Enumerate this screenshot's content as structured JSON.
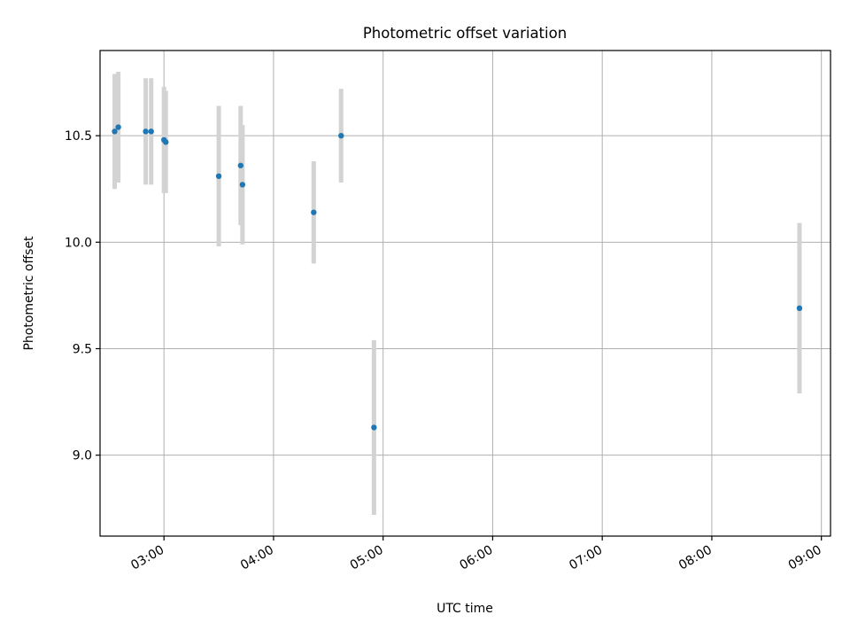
{
  "chart_data": {
    "type": "scatter",
    "title": "Photometric offset variation",
    "xlabel": "UTC time",
    "ylabel": "Photometric offset",
    "xlim": [
      "02:25",
      "09:05"
    ],
    "ylim": [
      8.62,
      10.9
    ],
    "x_ticks": [
      "03:00",
      "04:00",
      "05:00",
      "06:00",
      "07:00",
      "08:00",
      "09:00"
    ],
    "y_ticks": [
      9.0,
      9.5,
      10.0,
      10.5
    ],
    "y_tick_labels": [
      "9.0",
      "9.5",
      "10.0",
      "10.5"
    ],
    "grid": true,
    "colors": {
      "marker": "#1f77b4",
      "errorbar": "#d3d3d3",
      "grid": "#b0b0b0"
    },
    "points": [
      {
        "x": "02:33",
        "y": 10.52,
        "err": 0.27
      },
      {
        "x": "02:35",
        "y": 10.54,
        "err": 0.26
      },
      {
        "x": "02:50",
        "y": 10.52,
        "err": 0.25
      },
      {
        "x": "02:53",
        "y": 10.52,
        "err": 0.25
      },
      {
        "x": "03:00",
        "y": 10.48,
        "err": 0.25
      },
      {
        "x": "03:01",
        "y": 10.47,
        "err": 0.24
      },
      {
        "x": "03:30",
        "y": 10.31,
        "err": 0.33
      },
      {
        "x": "03:42",
        "y": 10.36,
        "err": 0.28
      },
      {
        "x": "03:43",
        "y": 10.27,
        "err": 0.28
      },
      {
        "x": "04:22",
        "y": 10.14,
        "err": 0.24
      },
      {
        "x": "04:37",
        "y": 10.5,
        "err": 0.22
      },
      {
        "x": "04:55",
        "y": 9.13,
        "err": 0.41
      },
      {
        "x": "08:48",
        "y": 9.69,
        "err": 0.4
      }
    ]
  }
}
